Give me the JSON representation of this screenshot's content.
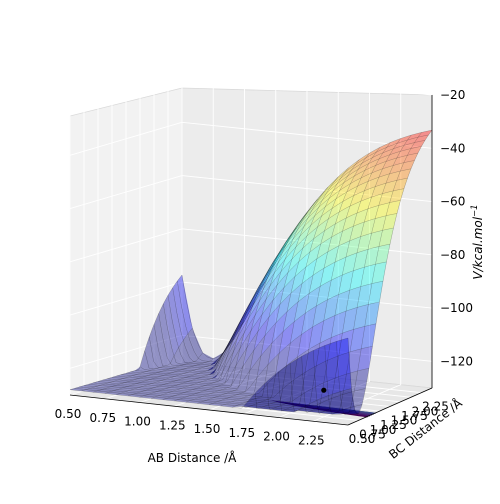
{
  "chart_data": {
    "type": "surface3d",
    "title": "",
    "xlabel": "AB Distance /Å",
    "ylabel": "BC Distance /Å",
    "zlabel": "V/kcal.mol",
    "zlabel_superscript": "−1",
    "x_ticks": [
      "0.50",
      "0.75",
      "1.00",
      "1.25",
      "1.50",
      "1.75",
      "2.00",
      "2.25"
    ],
    "y_ticks": [
      "0.50",
      "0.75",
      "1.00",
      "1.25",
      "1.50",
      "1.75",
      "2.00",
      "2.25"
    ],
    "z_ticks": [
      "−120",
      "−100",
      "−80",
      "−60",
      "−40",
      "−20"
    ],
    "x_range": [
      0.5,
      2.5
    ],
    "y_range": [
      0.5,
      2.5
    ],
    "z_range": [
      -130,
      -20
    ],
    "surface_colormap": "jet",
    "surface_alpha": 0.4,
    "contour_colormap": "viridis",
    "contour_levels": 18,
    "grid": true,
    "marked_point": {
      "x": 2.25,
      "y": 0.74,
      "z": -120,
      "color": "#000000"
    }
  }
}
